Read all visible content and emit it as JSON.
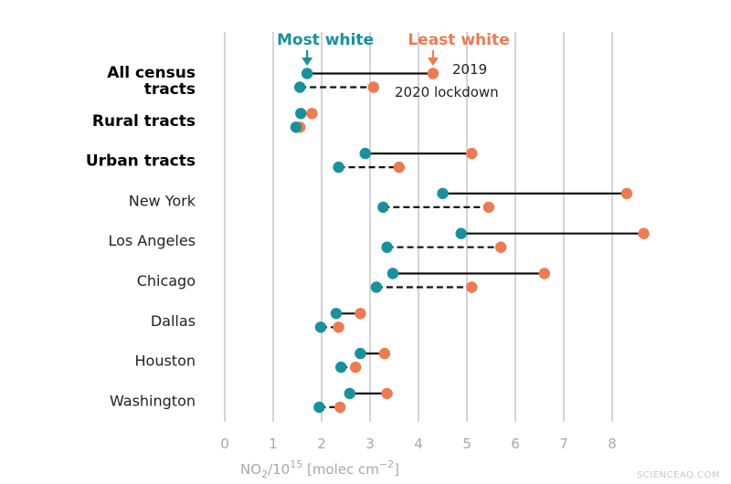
{
  "chart_data": {
    "type": "dumbbell",
    "title": "",
    "xlabel_parts": [
      "NO",
      "2",
      "/10",
      "15",
      " [molec cm",
      "−2",
      "]"
    ],
    "xlim": [
      0,
      8.8
    ],
    "xticks": [
      0,
      1,
      2,
      3,
      4,
      5,
      6,
      7,
      8
    ],
    "grid": true,
    "colors": {
      "most_white": "#17919e",
      "least_white": "#f07a50",
      "grid": "#b8b8b8"
    },
    "headers": {
      "most_white": "Most white",
      "least_white": "Least white"
    },
    "legend": {
      "solid": "2019",
      "dashed": "2020 lockdown"
    },
    "categories": [
      {
        "label": "All census tracts",
        "lines": [
          "All census",
          "tracts"
        ],
        "bold": true,
        "y2019": {
          "most_white": 1.7,
          "least_white": 4.3
        },
        "y2020": {
          "most_white": 1.55,
          "least_white": 3.07
        }
      },
      {
        "label": "Rural tracts",
        "lines": [
          "Rural tracts"
        ],
        "bold": true,
        "y2019": {
          "most_white": 1.57,
          "least_white": 1.8
        },
        "y2020": {
          "most_white": 1.47,
          "least_white": 1.55
        }
      },
      {
        "label": "Urban tracts",
        "lines": [
          "Urban tracts"
        ],
        "bold": true,
        "y2019": {
          "most_white": 2.9,
          "least_white": 5.1
        },
        "y2020": {
          "most_white": 2.35,
          "least_white": 3.6
        }
      },
      {
        "label": "New York",
        "lines": [
          "New York"
        ],
        "bold": false,
        "y2019": {
          "most_white": 4.5,
          "least_white": 8.3
        },
        "y2020": {
          "most_white": 3.27,
          "least_white": 5.45
        }
      },
      {
        "label": "Los Angeles",
        "lines": [
          "Los Angeles"
        ],
        "bold": false,
        "y2019": {
          "most_white": 4.88,
          "least_white": 8.65
        },
        "y2020": {
          "most_white": 3.35,
          "least_white": 5.7
        }
      },
      {
        "label": "Chicago",
        "lines": [
          "Chicago"
        ],
        "bold": false,
        "y2019": {
          "most_white": 3.47,
          "least_white": 6.6
        },
        "y2020": {
          "most_white": 3.13,
          "least_white": 5.1
        }
      },
      {
        "label": "Dallas",
        "lines": [
          "Dallas"
        ],
        "bold": false,
        "y2019": {
          "most_white": 2.3,
          "least_white": 2.8
        },
        "y2020": {
          "most_white": 1.98,
          "least_white": 2.35
        }
      },
      {
        "label": "Houston",
        "lines": [
          "Houston"
        ],
        "bold": false,
        "y2019": {
          "most_white": 2.8,
          "least_white": 3.3
        },
        "y2020": {
          "most_white": 2.4,
          "least_white": 2.7
        }
      },
      {
        "label": "Washington",
        "lines": [
          "Washington"
        ],
        "bold": false,
        "y2019": {
          "most_white": 2.58,
          "least_white": 3.35
        },
        "y2020": {
          "most_white": 1.95,
          "least_white": 2.38
        }
      }
    ]
  },
  "watermark": "SCIENCEAQ.COM"
}
